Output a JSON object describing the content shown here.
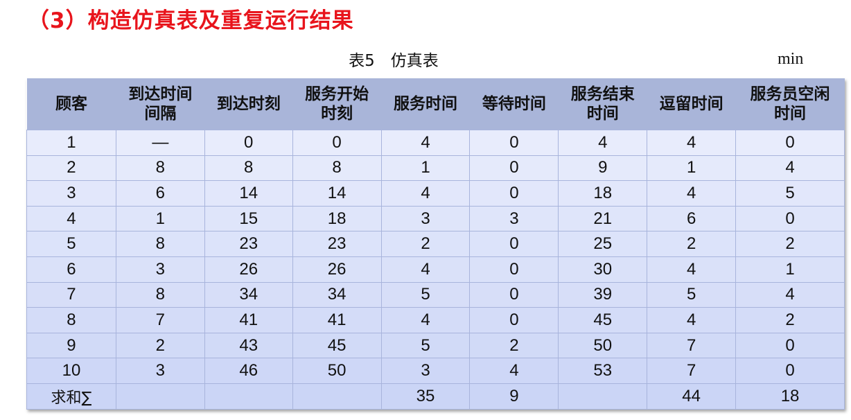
{
  "title": "（3）构造仿真表及重复运行结果",
  "caption": "表5　仿真表",
  "unit": "min",
  "table": {
    "headers": [
      "顾客",
      "到达时间\n间隔",
      "到达时刻",
      "服务开始\n时刻",
      "服务时间",
      "等待时间",
      "服务结束\n时间",
      "逗留时间",
      "服务员空闲\n时间"
    ],
    "rows": [
      [
        "1",
        "—",
        "0",
        "0",
        "4",
        "0",
        "4",
        "4",
        "0"
      ],
      [
        "2",
        "8",
        "8",
        "8",
        "1",
        "0",
        "9",
        "1",
        "4"
      ],
      [
        "3",
        "6",
        "14",
        "14",
        "4",
        "0",
        "18",
        "4",
        "5"
      ],
      [
        "4",
        "1",
        "15",
        "18",
        "3",
        "3",
        "21",
        "6",
        "0"
      ],
      [
        "5",
        "8",
        "23",
        "23",
        "2",
        "0",
        "25",
        "2",
        "2"
      ],
      [
        "6",
        "3",
        "26",
        "26",
        "4",
        "0",
        "30",
        "4",
        "1"
      ],
      [
        "7",
        "8",
        "34",
        "34",
        "5",
        "0",
        "39",
        "5",
        "4"
      ],
      [
        "8",
        "7",
        "41",
        "41",
        "4",
        "0",
        "45",
        "4",
        "2"
      ],
      [
        "9",
        "2",
        "43",
        "45",
        "5",
        "2",
        "50",
        "7",
        "0"
      ],
      [
        "10",
        "3",
        "46",
        "50",
        "3",
        "4",
        "53",
        "7",
        "0"
      ]
    ],
    "sum_row": [
      "求和∑",
      "",
      "",
      "",
      "35",
      "9",
      "",
      "44",
      "18"
    ]
  },
  "colors": {
    "title": "#e8141c",
    "header_bg": "#a9b5d9",
    "row_bg_top": "#e8ecfc",
    "row_bg_bottom": "#cbd5f6"
  }
}
